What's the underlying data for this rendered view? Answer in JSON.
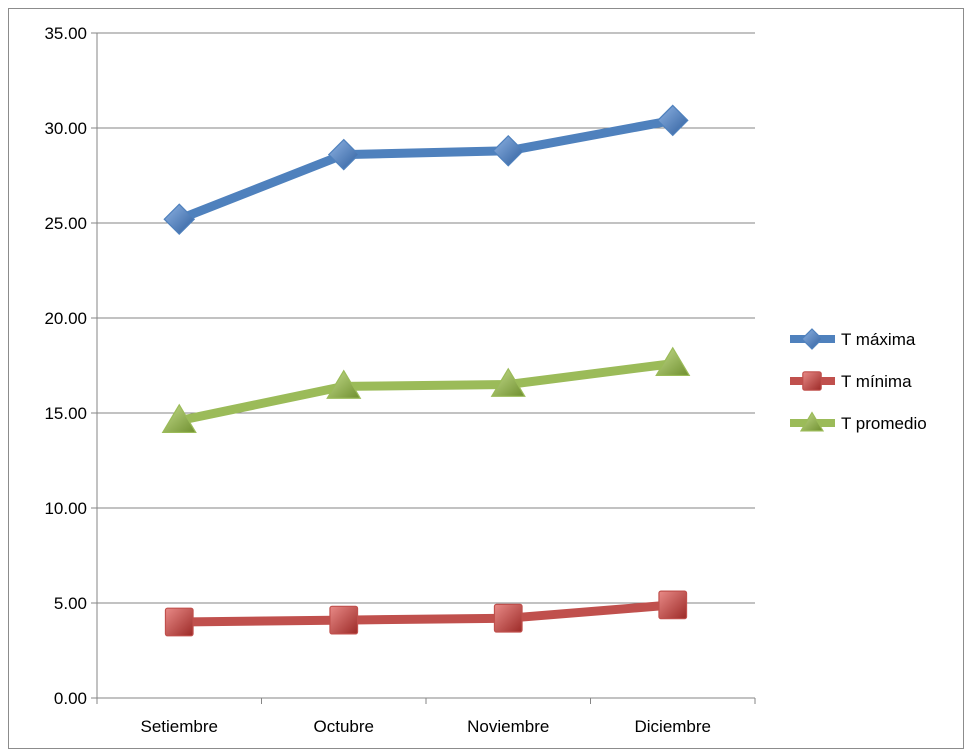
{
  "chart_data": {
    "type": "line",
    "title": "",
    "xlabel": "",
    "ylabel": "",
    "categories": [
      "Setiembre",
      "Octubre",
      "Noviembre",
      "Diciembre"
    ],
    "ylim": [
      0,
      35
    ],
    "ytick_values": [
      0,
      5,
      10,
      15,
      20,
      25,
      30,
      35
    ],
    "ytick_labels": [
      "0.00",
      "5.00",
      "10.00",
      "15.00",
      "20.00",
      "25.00",
      "30.00",
      "35.00"
    ],
    "grid": true,
    "legend_position": "right",
    "series": [
      {
        "name": "T máxima",
        "values": [
          25.2,
          28.6,
          28.8,
          30.4
        ],
        "color": "#4f81bd",
        "marker": "diamond"
      },
      {
        "name": "T mínima",
        "values": [
          4.0,
          4.1,
          4.2,
          4.9
        ],
        "color": "#c0504d",
        "marker": "square"
      },
      {
        "name": "T promedio",
        "values": [
          14.6,
          16.4,
          16.5,
          17.6
        ],
        "color": "#9bbb59",
        "marker": "triangle"
      }
    ]
  }
}
